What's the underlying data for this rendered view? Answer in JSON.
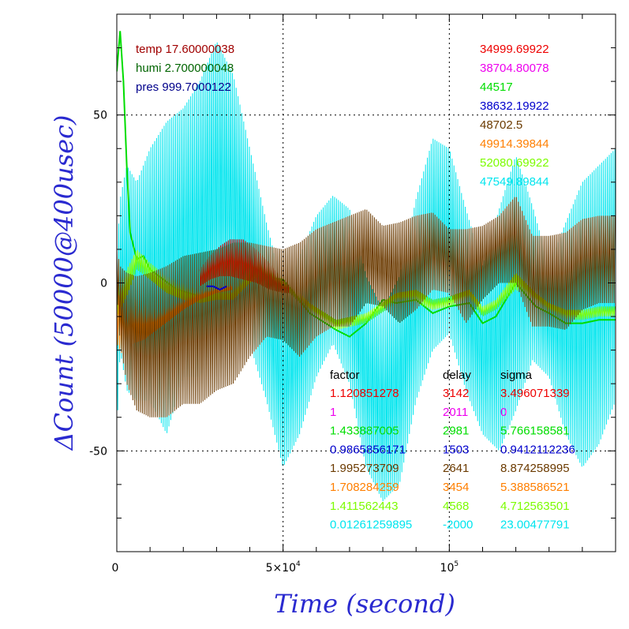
{
  "chart_data": {
    "type": "line",
    "xlabel": "Time (second)",
    "ylabel": "ΔCount (50000@400usec)",
    "xlim": [
      0,
      150000
    ],
    "ylim": [
      -80,
      80
    ],
    "x_ticks": [
      {
        "value": 0,
        "label": "0"
      },
      {
        "value": 50000,
        "base": "5×10",
        "exp": "4"
      },
      {
        "value": 100000,
        "base": "10",
        "exp": "5"
      }
    ],
    "y_ticks": [
      {
        "value": 50,
        "label": "50"
      },
      {
        "value": 0,
        "label": "0"
      },
      {
        "value": -50,
        "label": "-50"
      }
    ],
    "grid": {
      "x": [
        50000,
        100000
      ],
      "y": [
        50,
        -50
      ]
    },
    "env_readings": [
      {
        "text": "temp 17.60000038",
        "color": "#a00000"
      },
      {
        "text": "humi 2.700000048",
        "color": "#006400"
      },
      {
        "text": "pres 999.7000122",
        "color": "#00008b"
      }
    ],
    "series_values": [
      {
        "text": "34999.69922",
        "color": "#ee0000"
      },
      {
        "text": "38704.80078",
        "color": "#ee00ee"
      },
      {
        "text": "44517",
        "color": "#00dd00"
      },
      {
        "text": "38632.19922",
        "color": "#0000cc"
      },
      {
        "text": "48702.5",
        "color": "#6b3a00"
      },
      {
        "text": "49914.39844",
        "color": "#ff7f00"
      },
      {
        "text": "52080.69922",
        "color": "#7cfc00"
      },
      {
        "text": "47549.89844",
        "color": "#00e5ee"
      }
    ],
    "fit_table": {
      "headers": [
        "factor",
        "delay",
        "sigma"
      ],
      "rows": [
        {
          "color": "#ee0000",
          "factor": "1.120851278",
          "delay": "3142",
          "sigma": "3.496071339"
        },
        {
          "color": "#ee00ee",
          "factor": "1",
          "delay": "2011",
          "sigma": "0"
        },
        {
          "color": "#00dd00",
          "factor": "1.433887005",
          "delay": "2981",
          "sigma": "5.766158581"
        },
        {
          "color": "#0000cc",
          "factor": "0.9865856171",
          "delay": "1503",
          "sigma": "0.9412112236"
        },
        {
          "color": "#6b3a00",
          "factor": "1.995273709",
          "delay": "2641",
          "sigma": "8.874258995"
        },
        {
          "color": "#ff7f00",
          "factor": "1.708284259",
          "delay": "3454",
          "sigma": "5.388586521"
        },
        {
          "color": "#7cfc00",
          "factor": "1.411562443",
          "delay": "4568",
          "sigma": "4.712563501"
        },
        {
          "color": "#00e5ee",
          "factor": "0.01261259895",
          "delay": "-2000",
          "sigma": "23.00477791"
        }
      ]
    },
    "series": [
      {
        "color": "#00e5ee",
        "kind": "band",
        "x": [
          0,
          1000,
          3000,
          6000,
          10000,
          15000,
          20000,
          25000,
          30000,
          35000,
          40000,
          45000,
          50000,
          55000,
          60000,
          65000,
          70000,
          75000,
          80000,
          85000,
          90000,
          95000,
          100000,
          105000,
          110000,
          115000,
          120000,
          125000,
          130000,
          135000,
          140000,
          145000,
          150000
        ],
        "upper": [
          8,
          25,
          35,
          30,
          40,
          48,
          52,
          60,
          72,
          62,
          40,
          18,
          -2,
          8,
          20,
          26,
          22,
          2,
          -8,
          2,
          25,
          43,
          40,
          22,
          5,
          22,
          38,
          23,
          5,
          18,
          30,
          35,
          40
        ],
        "lower": [
          -45,
          -20,
          -32,
          -35,
          -35,
          -45,
          -28,
          -28,
          -17,
          -12,
          -18,
          -35,
          -55,
          -45,
          -28,
          -18,
          -30,
          -55,
          -65,
          -60,
          -35,
          -20,
          -15,
          -32,
          -45,
          -50,
          -38,
          -23,
          -28,
          -45,
          -55,
          -48,
          -35
        ]
      },
      {
        "color": "#00dd00",
        "kind": "line",
        "x": [
          0,
          1000,
          2000,
          3000,
          4000,
          6000,
          8000,
          10000,
          14000,
          18000,
          25000,
          30000,
          35000,
          42000,
          50000,
          58000,
          66000,
          70000,
          75000,
          80000,
          84000,
          90000,
          95000,
          100000,
          106000,
          110000,
          114000,
          120000,
          126000,
          130000,
          135000,
          140000,
          145000,
          150000
        ],
        "y": [
          63,
          75,
          60,
          35,
          15,
          7,
          8,
          4,
          1,
          -2,
          -4,
          -4,
          -4,
          2,
          1,
          -9,
          -14,
          -16,
          -12,
          -5,
          -6,
          -5,
          -9,
          -7,
          -6,
          -12,
          -10,
          0,
          -7,
          -9,
          -12,
          -12,
          -11,
          -11
        ]
      },
      {
        "color": "#7cfc00",
        "kind": "band",
        "x": [
          0,
          3000,
          6000,
          10000,
          15000,
          20000,
          25000,
          30000,
          35000,
          42000,
          50000,
          58000,
          66000,
          75000,
          84000,
          90000,
          95000,
          100000,
          106000,
          110000,
          114000,
          120000,
          126000,
          130000,
          135000,
          140000,
          145000,
          150000
        ],
        "upper": [
          -2,
          4,
          10,
          6,
          2,
          0,
          -2,
          -1,
          -1,
          7,
          2,
          -6,
          -11,
          -9,
          -3,
          -2,
          -5,
          -4,
          -2,
          -7,
          -5,
          3,
          -3,
          -6,
          -8,
          -8,
          -7,
          -7
        ],
        "lower": [
          -10,
          -4,
          4,
          1,
          -3,
          -5,
          -6,
          -5,
          -5,
          2,
          -1,
          -9,
          -14,
          -12,
          -6,
          -6,
          -8,
          -7,
          -5,
          -10,
          -8,
          -2,
          -6,
          -9,
          -11,
          -11,
          -10,
          -10
        ]
      },
      {
        "color": "#ee0000",
        "kind": "band",
        "x": [
          25000,
          28000,
          31000,
          34000,
          38000,
          42000,
          46000,
          50000,
          52000
        ],
        "upper": [
          4,
          8,
          11,
          13,
          13,
          10,
          6,
          1,
          0
        ],
        "lower": [
          -1,
          1,
          2,
          2,
          1,
          0,
          -2,
          -3,
          -3
        ]
      },
      {
        "color": "#ff7f00",
        "kind": "band",
        "x": [
          0,
          2000,
          5000,
          8000,
          12000,
          16000,
          20000,
          25000,
          30000,
          35000
        ],
        "upper": [
          -3,
          -5,
          -4,
          -6,
          -8,
          -6,
          -4,
          -2,
          -1,
          0
        ],
        "lower": [
          -18,
          -22,
          -18,
          -17,
          -14,
          -11,
          -8,
          -5,
          -3,
          -2
        ]
      },
      {
        "color": "#6b3a00",
        "kind": "band",
        "x": [
          0,
          1000,
          3000,
          6000,
          10000,
          15000,
          20000,
          25000,
          30000,
          35000,
          40000,
          45000,
          50000,
          55000,
          60000,
          65000,
          70000,
          75000,
          80000,
          85000,
          90000,
          95000,
          100000,
          105000,
          110000,
          115000,
          120000,
          125000,
          130000,
          135000,
          140000,
          145000,
          150000
        ],
        "upper": [
          10,
          5,
          3,
          2,
          3,
          5,
          8,
          9,
          10,
          12,
          12,
          11,
          10,
          12,
          16,
          18,
          20,
          22,
          17,
          18,
          20,
          21,
          16,
          16,
          17,
          20,
          26,
          14,
          14,
          15,
          19,
          20,
          20
        ],
        "lower": [
          -2,
          -18,
          -30,
          -38,
          -40,
          -40,
          -36,
          -36,
          -32,
          -30,
          -22,
          -16,
          -17,
          -22,
          -16,
          -13,
          -13,
          -6,
          -7,
          -12,
          -8,
          -2,
          -3,
          -12,
          -5,
          0,
          0,
          -13,
          -13,
          -14,
          -8,
          -6,
          -6
        ]
      },
      {
        "color": "#0000cc",
        "kind": "line",
        "x": [
          27000,
          29000,
          31000,
          33000
        ],
        "y": [
          -1,
          -1,
          -2,
          -1
        ]
      }
    ]
  }
}
